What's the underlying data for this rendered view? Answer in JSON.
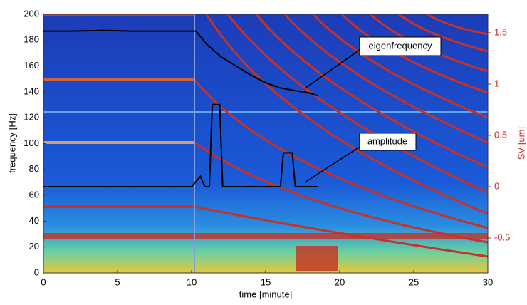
{
  "chart_data": {
    "type": "line",
    "xlabel": "time [minute]",
    "ylabel": "frequency [Hz]",
    "y2label": "SV [um]",
    "xlim": [
      0,
      30
    ],
    "xticks": [
      0,
      5,
      10,
      15,
      20,
      25,
      30
    ],
    "ylim": [
      0,
      200
    ],
    "yticks": [
      0,
      20,
      40,
      60,
      80,
      100,
      120,
      140,
      160,
      180,
      200
    ],
    "y2lim": [
      -0.84,
      1.68
    ],
    "y2ticks": [
      -0.5,
      0,
      0.5,
      1,
      1.5
    ],
    "y2color": "#cc2222",
    "grid": false,
    "series": [
      {
        "name": "eigenfrequency",
        "color": "#000000",
        "x": [
          0,
          2,
          4,
          6,
          8,
          10,
          10.3,
          11,
          11.5,
          12,
          13,
          14,
          15,
          16,
          17,
          18,
          18.5
        ],
        "values": [
          187,
          187,
          187.5,
          187,
          187,
          187,
          187,
          177,
          172,
          167,
          160,
          153,
          147,
          143,
          141,
          139,
          137
        ]
      },
      {
        "name": "amplitude",
        "color": "#000000",
        "axis": "y2",
        "x": [
          0,
          10,
          10.6,
          10.9,
          11.2,
          11.4,
          11.9,
          12.1,
          16,
          16.2,
          16.8,
          17,
          18.5
        ],
        "values": [
          0,
          0,
          0.1,
          0,
          0,
          0.8,
          0.8,
          0,
          0,
          0.33,
          0.33,
          0,
          0
        ]
      }
    ]
  }
}
